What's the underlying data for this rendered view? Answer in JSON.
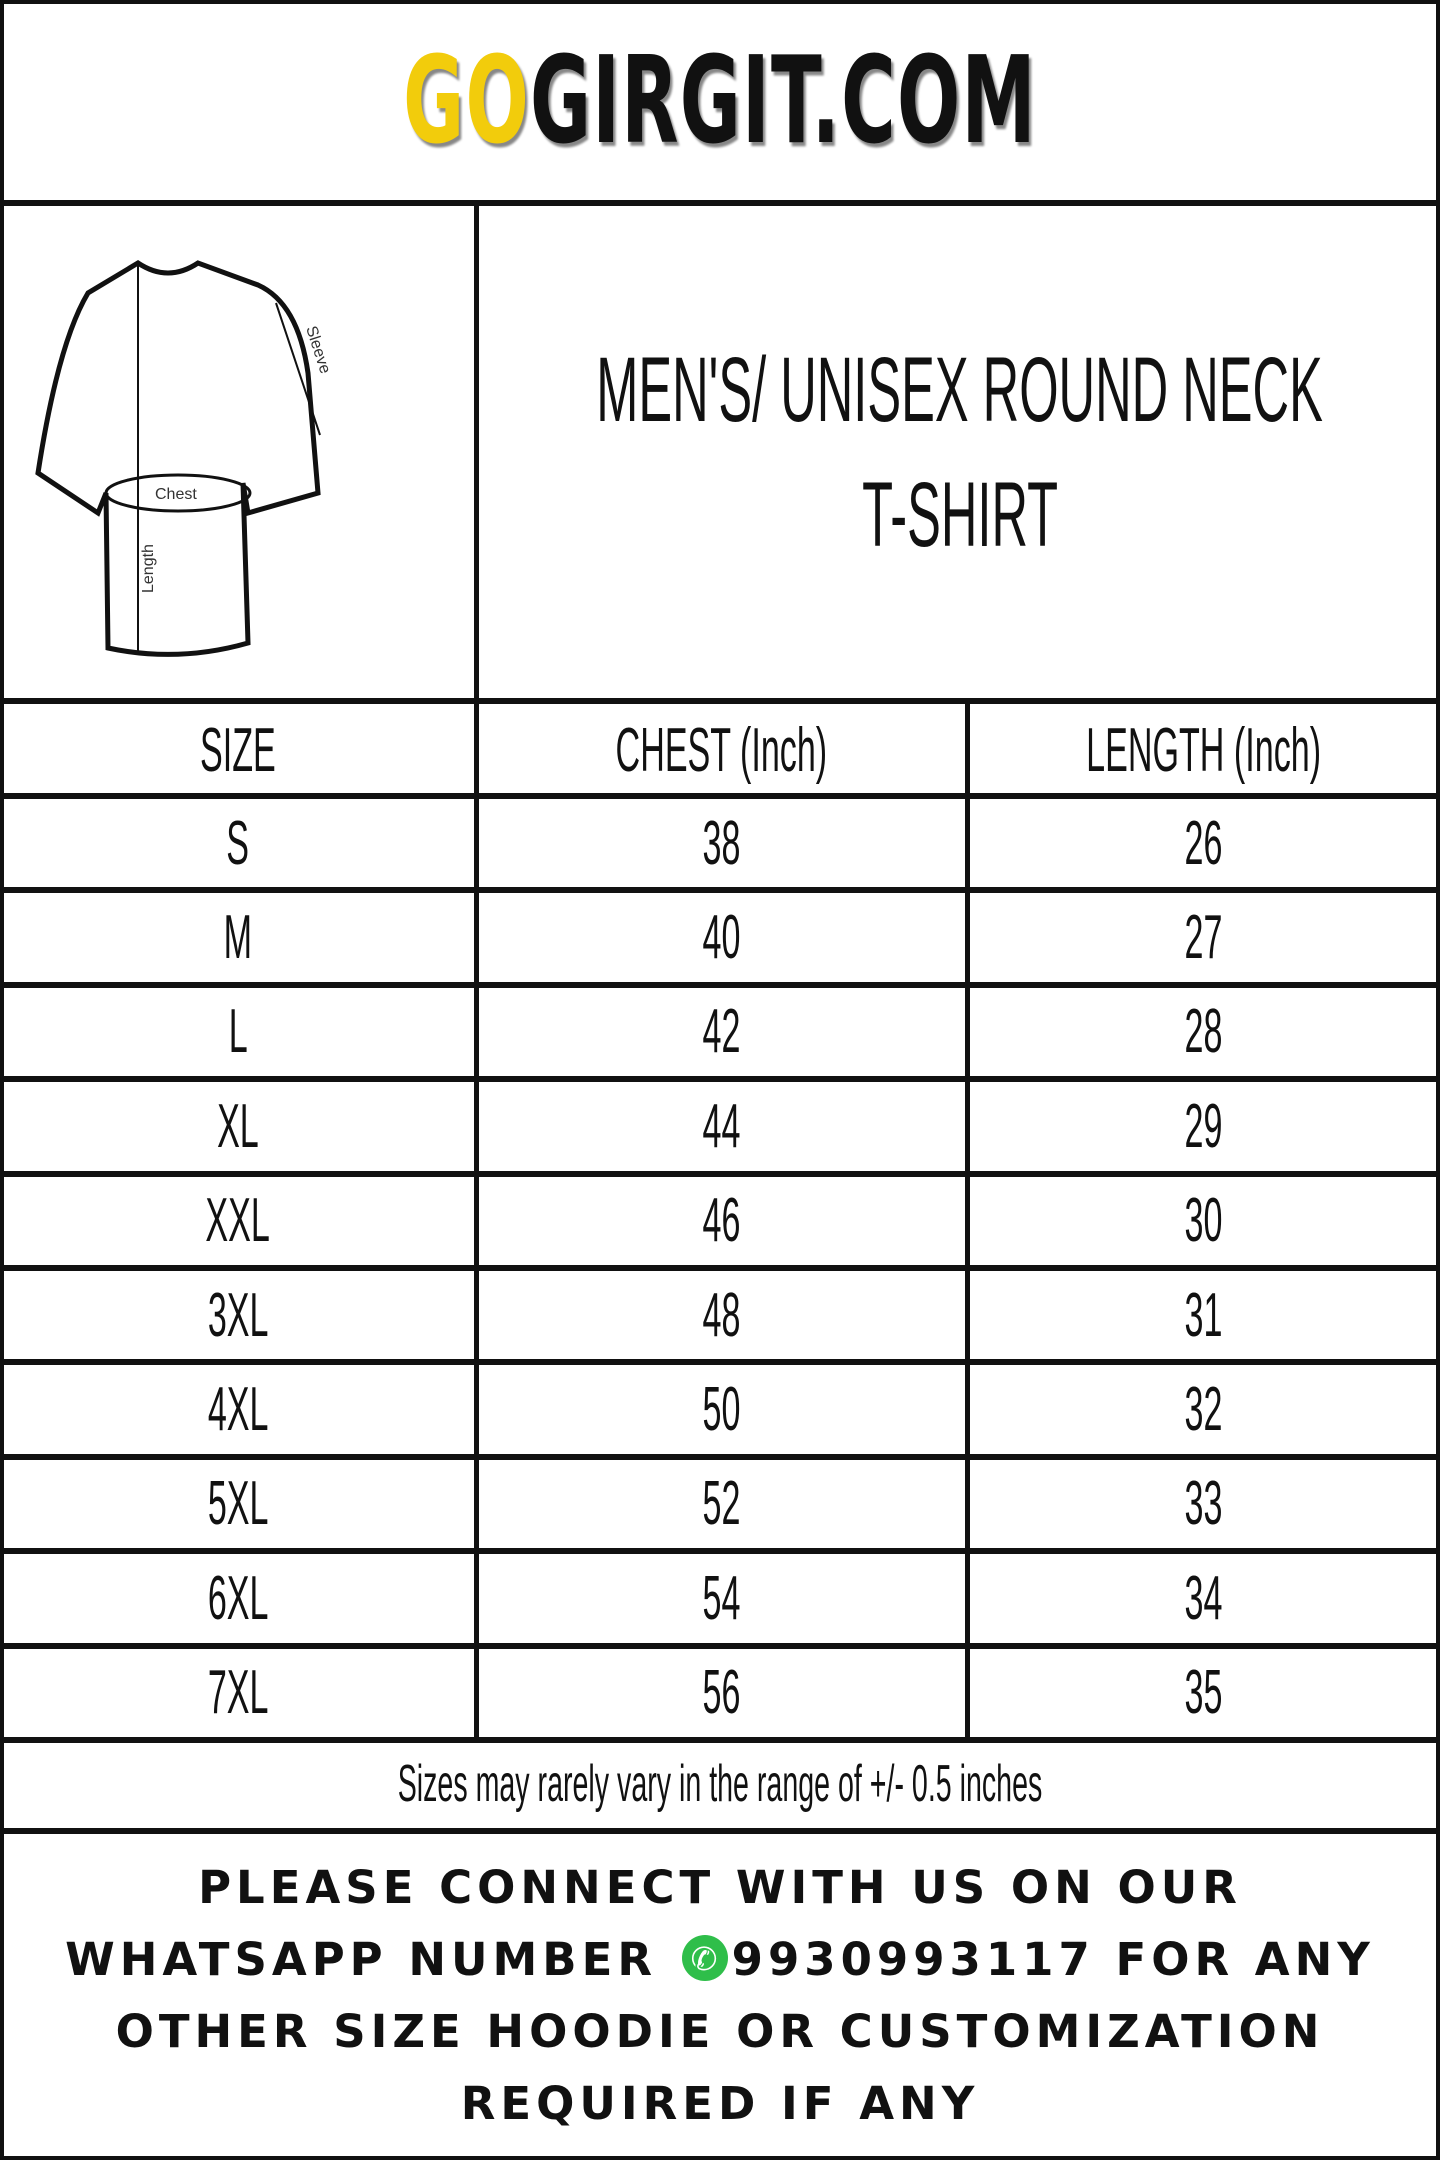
{
  "brand": {
    "logo_prefix": "GO",
    "logo_rest": "GIRGIT.COM",
    "accent_color": "#f2cc0c"
  },
  "diagram": {
    "labels": {
      "chest": "Chest",
      "length": "Length",
      "sleeve": "Sleeve"
    }
  },
  "title": {
    "line1": "MEN'S/ UNISEX ROUND NECK",
    "line2": "T-SHIRT"
  },
  "table": {
    "headers": [
      "SIZE",
      "CHEST (Inch)",
      "LENGTH (Inch)"
    ],
    "rows": [
      [
        "S",
        "38",
        "26"
      ],
      [
        "M",
        "40",
        "27"
      ],
      [
        "L",
        "42",
        "28"
      ],
      [
        "XL",
        "44",
        "29"
      ],
      [
        "XXL",
        "46",
        "30"
      ],
      [
        "3XL",
        "48",
        "31"
      ],
      [
        "4XL",
        "50",
        "32"
      ],
      [
        "5XL",
        "52",
        "33"
      ],
      [
        "6XL",
        "54",
        "34"
      ],
      [
        "7XL",
        "56",
        "35"
      ]
    ]
  },
  "note": "Sizes may rarely vary in the range of +/- 0.5 inches",
  "footer": {
    "line1": "PLEASE CONNECT WITH US ON OUR",
    "line2_a": "WHATSAPP NUMBER",
    "phone": "9930993117",
    "line2_b": "FOR ANY",
    "line3": "OTHER SIZE HOODIE OR CUSTOMIZATION",
    "line4": "REQUIRED IF ANY",
    "icon": "whatsapp-icon"
  }
}
